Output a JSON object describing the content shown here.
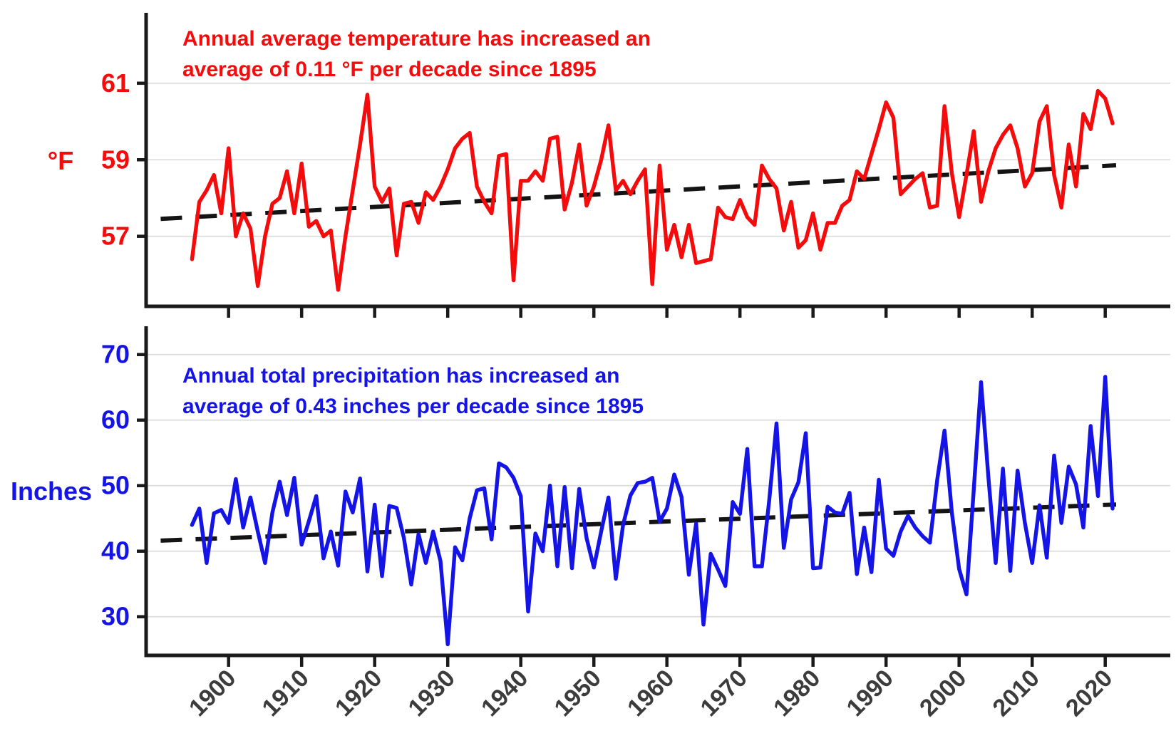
{
  "figure": {
    "background": "#ffffff",
    "axis_color": "#1a1a1a",
    "gridline_color": "#d9d9d9",
    "xtick_label_color": "#3c3c3c",
    "trend_line_color": "#141414"
  },
  "chart_data": [
    {
      "type": "line",
      "name": "annual-average-temperature",
      "title": "",
      "ylabel_display": "°F",
      "line_color": "#F40B0B",
      "annotation": {
        "line1": "Annual average temperature has increased an",
        "line2": "average of 0.11 °F per decade since 1895",
        "color": "#F40B0B"
      },
      "trend": {
        "start_year": 1895,
        "end_year": 2021,
        "start_value": 57.5,
        "end_value": 58.85,
        "slope_label": "0.11 °F per decade"
      },
      "yticks": [
        57,
        59,
        61
      ],
      "ylim": [
        55.17,
        62.8
      ],
      "xlim": [
        1888.8,
        2028
      ],
      "grid": true,
      "legend_position": "none",
      "start_year": 1895,
      "x_step": 1,
      "values": [
        56.4,
        57.9,
        58.2,
        58.6,
        57.6,
        59.3,
        57.0,
        57.6,
        57.2,
        55.7,
        57.0,
        57.85,
        58.0,
        58.7,
        57.6,
        58.9,
        57.25,
        57.4,
        57.0,
        57.15,
        55.6,
        57.0,
        58.2,
        59.4,
        60.7,
        58.3,
        57.9,
        58.25,
        56.5,
        57.85,
        57.9,
        57.35,
        58.15,
        57.95,
        58.3,
        58.75,
        59.3,
        59.55,
        59.7,
        58.3,
        57.9,
        57.6,
        59.1,
        59.15,
        55.85,
        58.45,
        58.45,
        58.7,
        58.45,
        59.55,
        59.6,
        57.7,
        58.4,
        59.4,
        57.8,
        58.3,
        59.0,
        59.9,
        58.2,
        58.45,
        58.1,
        58.45,
        58.75,
        55.75,
        58.85,
        56.65,
        57.3,
        56.45,
        57.3,
        56.3,
        56.35,
        56.4,
        57.75,
        57.5,
        57.45,
        57.95,
        57.5,
        57.3,
        58.85,
        58.5,
        58.25,
        57.15,
        57.9,
        56.7,
        56.9,
        57.6,
        56.65,
        57.35,
        57.35,
        57.8,
        57.95,
        58.7,
        58.5,
        59.15,
        59.8,
        60.5,
        60.1,
        58.1,
        58.3,
        58.5,
        58.65,
        57.75,
        57.8,
        60.4,
        58.65,
        57.5,
        58.6,
        59.75,
        57.9,
        58.7,
        59.3,
        59.65,
        59.9,
        59.3,
        58.3,
        58.65,
        60.0,
        60.4,
        58.6,
        57.75,
        59.4,
        58.3,
        60.2,
        59.8,
        60.8,
        60.6,
        59.95
      ]
    },
    {
      "type": "line",
      "name": "annual-total-precipitation",
      "title": "",
      "ylabel_display": "Inches",
      "line_color": "#1414E6",
      "annotation": {
        "line1": "Annual total precipitation has increased an",
        "line2": "average of 0.43 inches per decade since 1895",
        "color": "#1414E6"
      },
      "trend": {
        "start_year": 1895,
        "end_year": 2021,
        "start_value": 41.8,
        "end_value": 47.1,
        "slope_label": "0.43 inches per decade"
      },
      "yticks": [
        30,
        40,
        50,
        60,
        70
      ],
      "ylim": [
        24.1,
        74.3
      ],
      "xlim": [
        1888.8,
        2028
      ],
      "grid": true,
      "legend_position": "none",
      "start_year": 1895,
      "x_step": 1,
      "values": [
        44.0,
        46.5,
        38.2,
        45.8,
        46.3,
        44.3,
        51.0,
        43.6,
        48.2,
        43.0,
        38.2,
        45.9,
        50.6,
        45.5,
        51.2,
        41.0,
        44.6,
        48.4,
        38.9,
        43.0,
        37.8,
        49.1,
        45.9,
        51.1,
        36.9,
        47.1,
        36.2,
        46.9,
        46.6,
        42.0,
        34.9,
        42.6,
        38.2,
        43.0,
        38.5,
        25.8,
        40.6,
        38.6,
        45.0,
        49.3,
        49.6,
        41.8,
        53.4,
        52.8,
        51.2,
        48.4,
        30.8,
        42.7,
        40.0,
        50.0,
        37.7,
        49.8,
        37.4,
        49.5,
        42.0,
        37.5,
        43.0,
        48.2,
        35.8,
        44.0,
        48.5,
        50.4,
        50.6,
        51.2,
        44.5,
        46.5,
        51.7,
        48.3,
        36.4,
        44.2,
        28.8,
        39.6,
        37.2,
        34.7,
        47.5,
        45.7,
        55.6,
        37.7,
        37.7,
        47.7,
        59.5,
        40.5,
        47.9,
        50.5,
        58.0,
        37.4,
        37.5,
        46.8,
        45.9,
        45.7,
        48.9,
        36.5,
        43.6,
        36.8,
        50.9,
        40.4,
        39.3,
        43.0,
        45.4,
        43.6,
        42.3,
        41.3,
        50.9,
        58.4,
        45.9,
        37.3,
        33.4,
        49.3,
        65.8,
        51.4,
        38.2,
        52.6,
        37.0,
        52.3,
        44.3,
        38.2,
        47.0,
        39.0,
        54.6,
        44.3,
        52.9,
        50.2,
        43.6,
        59.1,
        48.4,
        66.6,
        46.5
      ]
    }
  ],
  "x_axis": {
    "ticks": [
      1900,
      1910,
      1920,
      1930,
      1940,
      1950,
      1960,
      1970,
      1980,
      1990,
      2000,
      2010,
      2020
    ],
    "labels": [
      "1900",
      "1910",
      "1920",
      "1930",
      "1940",
      "1950",
      "1960",
      "1970",
      "1980",
      "1990",
      "2000",
      "2010",
      "2020"
    ]
  }
}
